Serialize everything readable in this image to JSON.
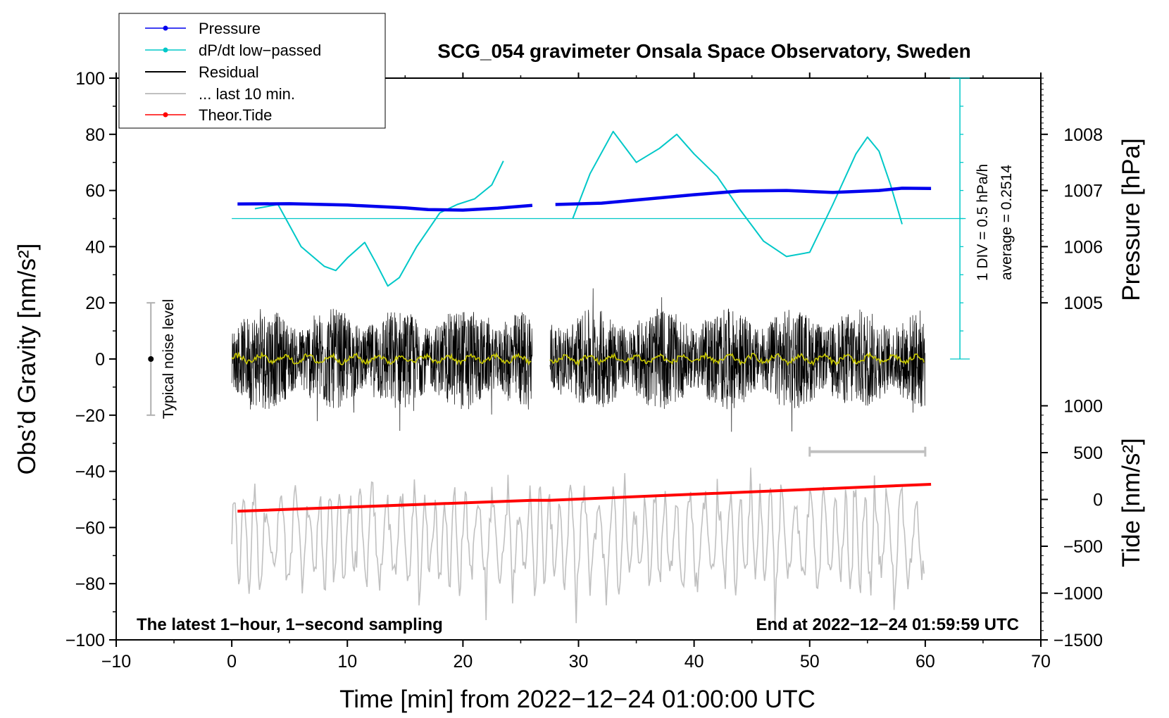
{
  "chart_data": {
    "type": "line",
    "title": "SCG_054 gravimeter Onsala Space Observatory, Sweden",
    "xlabel": "Time [min] from 2022−12−24 01:00:00 UTC",
    "ylabel_left": "Obs’d Gravity [nm/s²]",
    "ylabel_right_pressure": "Pressure [hPa]",
    "ylabel_right_tide": "Tide [nm/s²]",
    "xlim": [
      -10,
      70
    ],
    "ylim": [
      -100,
      100
    ],
    "x_ticks": [
      "−10",
      "0",
      "10",
      "20",
      "30",
      "40",
      "50",
      "60",
      "70"
    ],
    "y_ticks": [
      "100",
      "80",
      "60",
      "40",
      "20",
      "0",
      "−20",
      "−40",
      "−60",
      "−80",
      "−100"
    ],
    "pressure_axis": {
      "ticks": [
        "1008",
        "1007",
        "1006",
        "1005"
      ],
      "values": [
        1008,
        1007,
        1006,
        1005
      ],
      "ref_gravity_value_at_1005": 20,
      "gravity_units_per_hPa": 20
    },
    "tide_axis": {
      "ticks": [
        "1000",
        "500",
        "0",
        "−500",
        "−1000",
        "−1500"
      ],
      "values": [
        1000,
        500,
        0,
        -500,
        -1000,
        -1500
      ],
      "gravity_value_at_zero": -50,
      "gravity_units_per_500": 16.67
    },
    "legend": [
      {
        "label": "Pressure",
        "color": "#0000ee",
        "marker": true
      },
      {
        "label": "dP/dt low−passed",
        "color": "#00c8c8",
        "marker": true
      },
      {
        "label": "Residual",
        "color": "#000000",
        "marker": false
      },
      {
        "label": "... last 10 min.",
        "color": "#c0c0c0",
        "marker": false
      },
      {
        "label": "Theor.Tide",
        "color": "#ff0000",
        "marker": true
      }
    ],
    "series": [
      {
        "name": "Pressure",
        "color": "#0000ee",
        "units": "gravity-axis",
        "x": [
          0.5,
          5,
          10,
          15,
          17,
          20,
          23,
          26,
          28,
          32,
          36,
          40,
          44,
          48,
          52,
          56,
          58,
          60.5
        ],
        "y": [
          55.2,
          55.3,
          54.8,
          53.8,
          53.2,
          53.0,
          53.7,
          54.7,
          55.0,
          55.5,
          57.0,
          58.5,
          59.8,
          60.0,
          59.3,
          60.0,
          60.8,
          60.7
        ],
        "gap_after_x": 26
      },
      {
        "name": "dP/dt low−passed",
        "color": "#00c8c8",
        "units": "gravity-axis",
        "x": [
          2,
          4,
          6,
          8,
          9,
          10,
          11.5,
          12.5,
          13.5,
          14.5,
          16,
          18,
          19.5,
          21,
          22.5,
          23.5
        ],
        "y": [
          53.5,
          55,
          40,
          33,
          31.5,
          36,
          41.5,
          34,
          26,
          29,
          40,
          52,
          55,
          57,
          62,
          70.5
        ],
        "gap_after_x": 23.5
      },
      {
        "name": "dP/dt low−passed (part 2)",
        "color": "#00c8c8",
        "units": "gravity-axis",
        "x": [
          29.5,
          31,
          33,
          35,
          37,
          38.5,
          40,
          42,
          44,
          46,
          48,
          50,
          52,
          54,
          55,
          56,
          57,
          58
        ],
        "y": [
          50,
          66,
          81,
          70,
          75,
          80,
          73,
          65,
          53,
          42,
          36.5,
          38,
          55,
          73,
          79,
          74,
          62,
          48
        ]
      },
      {
        "name": "Residual",
        "color": "#000000",
        "units": "gravity-axis",
        "x_range": [
          0,
          60
        ],
        "noise_band": [
          -32,
          31
        ],
        "gap": [
          26,
          27.5
        ]
      },
      {
        "name": "Residual low−passed",
        "color": "#c8c800",
        "units": "gravity-axis",
        "x_range": [
          0,
          60
        ],
        "y_center": 0
      },
      {
        "name": "... last 10 min.",
        "color": "#c0c0c0",
        "units": "gravity-axis",
        "x_range": [
          0,
          60
        ],
        "center": -64,
        "amplitude": 22
      },
      {
        "name": "Theor.Tide",
        "color": "#ff0000",
        "units": "gravity-axis",
        "x": [
          0.5,
          26,
          27.5,
          60.5
        ],
        "y": [
          -54.2,
          -50.3,
          -50.3,
          -44.6
        ],
        "gap": [
          26,
          27.5
        ]
      }
    ],
    "reference_line": {
      "label": "dP/dt zero",
      "y": 50,
      "x_range": [
        0,
        63.5
      ],
      "color": "#00c8c8"
    },
    "dpdt_scale_bar": {
      "x": 63,
      "y_range": [
        0,
        100
      ],
      "ticks_every": 10,
      "label_div": "1 DIV = 0.5 hPa/h",
      "label_avg": "average = 0.2514"
    },
    "noise_level_bar": {
      "label": "Typical noise level",
      "x": -7,
      "y_range": [
        -20,
        20
      ],
      "dot_y": 0
    },
    "ten_min_bar": {
      "x_range": [
        50,
        60
      ],
      "y": -33
    },
    "annotations": {
      "bottom_left": "The latest 1−hour, 1−second sampling",
      "bottom_right": "End at 2022−12−24 01:59:59 UTC"
    }
  }
}
